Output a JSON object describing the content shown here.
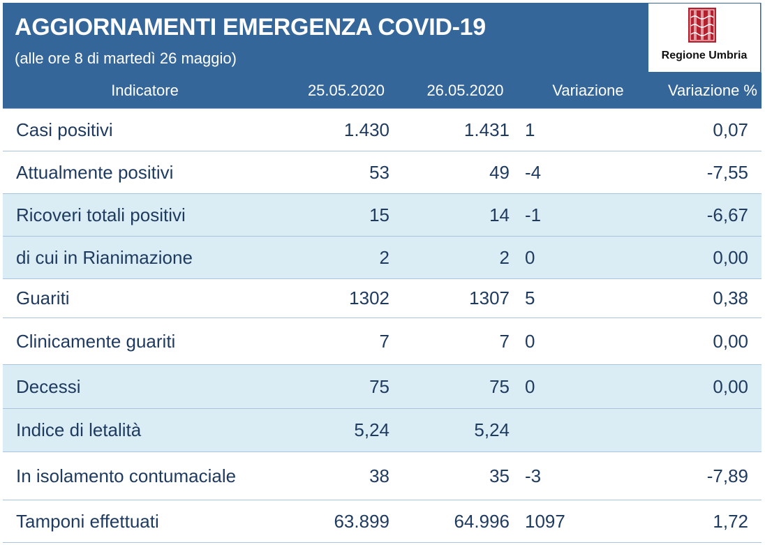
{
  "header": {
    "title": "AGGIORNAMENTI EMERGENZA COVID-19",
    "subtitle": "(alle ore 8 di martedì 26 maggio)",
    "logo_text": "Regione Umbria",
    "accent_color": "#35669a",
    "shade_color": "#daedf4"
  },
  "table": {
    "columns": [
      "Indicatore",
      "25.05.2020",
      "26.05.2020",
      "Variazione",
      "Variazione %"
    ],
    "rows": [
      {
        "label": "Casi positivi",
        "d1": "1.430",
        "d2": "1.431",
        "var": "1",
        "pct": "0,07"
      },
      {
        "label": "Attualmente positivi",
        "d1": "53",
        "d2": "49",
        "var": "-4",
        "pct": "-7,55"
      },
      {
        "label": "Ricoveri totali positivi",
        "d1": "15",
        "d2": "14",
        "var": "-1",
        "pct": "-6,67"
      },
      {
        "label": "di cui in Rianimazione",
        "d1": "2",
        "d2": "2",
        "var": "0",
        "pct": "0,00"
      },
      {
        "label": "Guariti",
        "d1": "1302",
        "d2": "1307",
        "var": "5",
        "pct": "0,38"
      },
      {
        "label": "Clinicamente guariti",
        "d1": "7",
        "d2": "7",
        "var": "0",
        "pct": "0,00"
      },
      {
        "label": "Decessi",
        "d1": "75",
        "d2": "75",
        "var": "0",
        "pct": "0,00"
      },
      {
        "label": "Indice di letalità",
        "d1": "5,24",
        "d2": "5,24",
        "var": "",
        "pct": ""
      },
      {
        "label": "In isolamento contumaciale",
        "d1": "38",
        "d2": "35",
        "var": "-3",
        "pct": "-7,89"
      },
      {
        "label": "Tamponi effettuati",
        "d1": "63.899",
        "d2": "64.996",
        "var": "1097",
        "pct": "1,72"
      }
    ]
  }
}
